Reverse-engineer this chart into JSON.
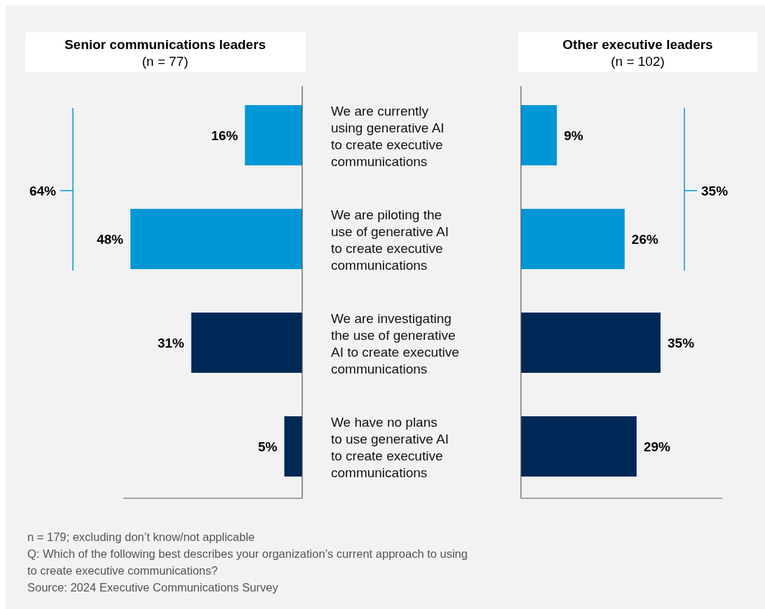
{
  "chart_data": [
    {
      "type": "bar",
      "orientation": "horizontal",
      "title": "Senior communications leaders",
      "subtitle": "(n = 77)",
      "categories": [
        "We are currently\nusing generative AI\nto create executive\ncommunications",
        "We are piloting the\nuse of generative AI\nto create executive\ncommunications",
        "We are investigating\nthe use of generative\nAI to create executive\ncommunications",
        "We have no plans\nto use generative AI\nto create executive\ncommunications"
      ],
      "values": [
        16,
        48,
        31,
        5
      ],
      "value_labels": [
        "16%",
        "48%",
        "31%",
        "5%"
      ],
      "colors": [
        "#0097d6",
        "#0097d6",
        "#002856",
        "#002856"
      ],
      "annotations": [
        "64%",
        "n = 179; excluding don’t know/not applicable",
        "Q: Which of the following best describes your organization’s current approach to using to create executive communications?",
        "Source: 2024 Executive Communications Survey"
      ]
    },
    {
      "type": "bar",
      "orientation": "horizontal",
      "title": "Other executive leaders",
      "subtitle": "(n = 102)",
      "categories": [
        null,
        null,
        null,
        null
      ],
      "values": [
        9,
        26,
        35,
        29
      ],
      "value_labels": [
        "9%",
        "26%",
        "35%",
        "29%"
      ],
      "colors": [
        "#0097d6",
        "#0097d6",
        "#002856",
        "#002856"
      ],
      "annotations": [
        "35%"
      ]
    }
  ]
}
